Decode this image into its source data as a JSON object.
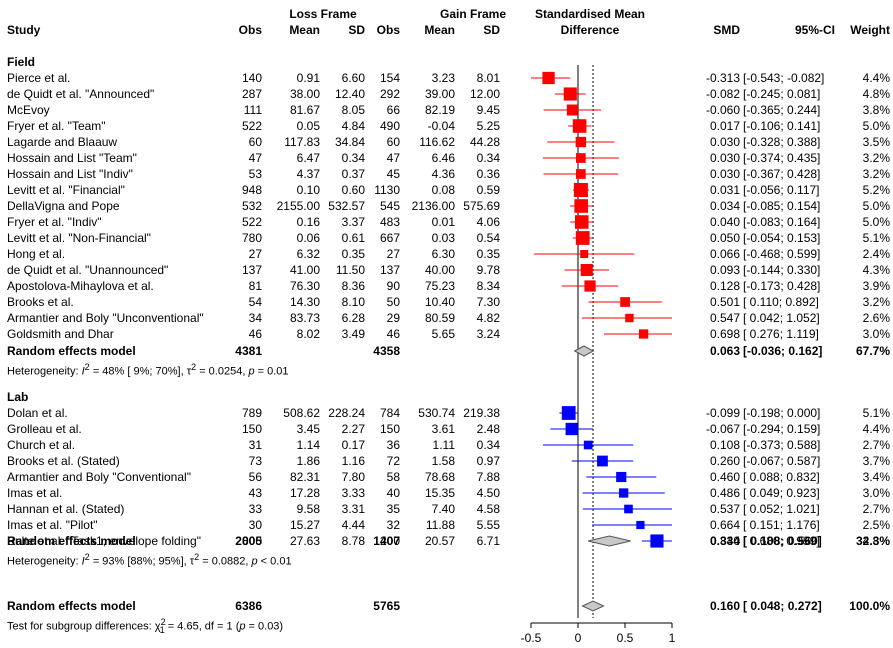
{
  "header": {
    "group_loss": "Loss Frame",
    "group_gain": "Gain Frame",
    "smd_title_1": "Standardised Mean",
    "smd_title_2": "Difference",
    "col_study": "Study",
    "col_obs1": "Obs",
    "col_mean1": "Mean",
    "col_sd1": "SD",
    "col_obs2": "Obs",
    "col_mean2": "Mean",
    "col_sd2": "SD",
    "col_smd": "SMD",
    "col_ci": "95%-CI",
    "col_weight": "Weight"
  },
  "field": {
    "title": "Field",
    "rows": [
      {
        "study": "Pierce et al.",
        "obs1": "140",
        "mean1": "0.91",
        "sd1": "6.60",
        "obs2": "154",
        "mean2": "3.23",
        "sd2": "8.01",
        "smd": "-0.313",
        "ci": "[-0.543; -0.082]",
        "weight": "4.4%"
      },
      {
        "study": "de Quidt et al. \"Announced\"",
        "obs1": "287",
        "mean1": "38.00",
        "sd1": "12.40",
        "obs2": "292",
        "mean2": "39.00",
        "sd2": "12.00",
        "smd": "-0.082",
        "ci": "[-0.245;  0.081]",
        "weight": "4.8%"
      },
      {
        "study": "McEvoy",
        "obs1": "111",
        "mean1": "81.67",
        "sd1": "8.05",
        "obs2": "66",
        "mean2": "82.19",
        "sd2": "9.45",
        "smd": "-0.060",
        "ci": "[-0.365;  0.244]",
        "weight": "3.8%"
      },
      {
        "study": "Fryer et al. \"Team\"",
        "obs1": "522",
        "mean1": "0.05",
        "sd1": "4.84",
        "obs2": "490",
        "mean2": "-0.04",
        "sd2": "5.25",
        "smd": "0.017",
        "ci": "[-0.106;  0.141]",
        "weight": "5.0%"
      },
      {
        "study": "Lagarde and Blaauw",
        "obs1": "60",
        "mean1": "117.83",
        "sd1": "34.84",
        "obs2": "60",
        "mean2": "116.62",
        "sd2": "44.28",
        "smd": "0.030",
        "ci": "[-0.328;  0.388]",
        "weight": "3.5%"
      },
      {
        "study": "Hossain and List \"Team\"",
        "obs1": "47",
        "mean1": "6.47",
        "sd1": "0.34",
        "obs2": "47",
        "mean2": "6.46",
        "sd2": "0.34",
        "smd": "0.030",
        "ci": "[-0.374;  0.435]",
        "weight": "3.2%"
      },
      {
        "study": "Hossain and List \"Indiv\"",
        "obs1": "53",
        "mean1": "4.37",
        "sd1": "0.37",
        "obs2": "45",
        "mean2": "4.36",
        "sd2": "0.36",
        "smd": "0.030",
        "ci": "[-0.367;  0.428]",
        "weight": "3.2%"
      },
      {
        "study": "Levitt et al. \"Financial\"",
        "obs1": "948",
        "mean1": "0.10",
        "sd1": "0.60",
        "obs2": "1130",
        "mean2": "0.08",
        "sd2": "0.59",
        "smd": "0.031",
        "ci": "[-0.056;  0.117]",
        "weight": "5.2%"
      },
      {
        "study": "DellaVigna and Pope",
        "obs1": "532",
        "mean1": "2155.00",
        "sd1": "532.57",
        "obs2": "545",
        "mean2": "2136.00",
        "sd2": "575.69",
        "smd": "0.034",
        "ci": "[-0.085;  0.154]",
        "weight": "5.0%"
      },
      {
        "study": "Fryer et al. \"Indiv\"",
        "obs1": "522",
        "mean1": "0.16",
        "sd1": "3.37",
        "obs2": "483",
        "mean2": "0.01",
        "sd2": "4.06",
        "smd": "0.040",
        "ci": "[-0.083;  0.164]",
        "weight": "5.0%"
      },
      {
        "study": "Levitt et al. \"Non-Financial\"",
        "obs1": "780",
        "mean1": "0.06",
        "sd1": "0.61",
        "obs2": "667",
        "mean2": "0.03",
        "sd2": "0.54",
        "smd": "0.050",
        "ci": "[-0.054;  0.153]",
        "weight": "5.1%"
      },
      {
        "study": "Hong et al.",
        "obs1": "27",
        "mean1": "6.32",
        "sd1": "0.35",
        "obs2": "27",
        "mean2": "6.30",
        "sd2": "0.35",
        "smd": "0.066",
        "ci": "[-0.468;  0.599]",
        "weight": "2.4%"
      },
      {
        "study": "de Quidt et al. \"Unannounced\"",
        "obs1": "137",
        "mean1": "41.00",
        "sd1": "11.50",
        "obs2": "137",
        "mean2": "40.00",
        "sd2": "9.78",
        "smd": "0.093",
        "ci": "[-0.144;  0.330]",
        "weight": "4.3%"
      },
      {
        "study": "Apostolova-Mihaylova et al.",
        "obs1": "81",
        "mean1": "76.30",
        "sd1": "8.36",
        "obs2": "90",
        "mean2": "75.23",
        "sd2": "8.34",
        "smd": "0.128",
        "ci": "[-0.173;  0.428]",
        "weight": "3.9%"
      },
      {
        "study": "Brooks et al.",
        "obs1": "54",
        "mean1": "14.30",
        "sd1": "8.10",
        "obs2": "50",
        "mean2": "10.40",
        "sd2": "7.30",
        "smd": "0.501",
        "ci": "[ 0.110;  0.892]",
        "weight": "3.2%"
      },
      {
        "study": "Armantier and Boly \"Unconventional\"",
        "obs1": "34",
        "mean1": "83.73",
        "sd1": "6.28",
        "obs2": "29",
        "mean2": "80.59",
        "sd2": "4.82",
        "smd": "0.547",
        "ci": "[ 0.042;  1.052]",
        "weight": "2.6%"
      },
      {
        "study": "Goldsmith and Dhar",
        "obs1": "46",
        "mean1": "8.02",
        "sd1": "3.49",
        "obs2": "46",
        "mean2": "5.65",
        "sd2": "3.24",
        "smd": "0.698",
        "ci": "[ 0.276;  1.119]",
        "weight": "3.0%"
      }
    ],
    "summary": {
      "label": "Random effects model",
      "obs1": "4381",
      "obs2": "4358",
      "smd": "0.063",
      "ci": "[-0.036;  0.162]",
      "weight": "67.7%"
    },
    "het_prefix": "Heterogeneity: ",
    "het_i2": "I",
    "het_i2_sup": "2",
    "het_mid": " = 48% [ 9%; 70%], ",
    "het_tau": "τ",
    "het_tau_sup": "2",
    "het_tail": " = 0.0254, ",
    "het_p": "p",
    "het_p_val": " = 0.01"
  },
  "lab": {
    "title": "Lab",
    "rows": [
      {
        "study": "Dolan et al.",
        "obs1": "789",
        "mean1": "508.62",
        "sd1": "228.24",
        "obs2": "784",
        "mean2": "530.74",
        "sd2": "219.38",
        "smd": "-0.099",
        "ci": "[-0.198;  0.000]",
        "weight": "5.1%"
      },
      {
        "study": "Grolleau et al.",
        "obs1": "150",
        "mean1": "3.45",
        "sd1": "2.27",
        "obs2": "150",
        "mean2": "3.61",
        "sd2": "2.48",
        "smd": "-0.067",
        "ci": "[-0.294;  0.159]",
        "weight": "4.4%"
      },
      {
        "study": "Church et al.",
        "obs1": "31",
        "mean1": "1.14",
        "sd1": "0.17",
        "obs2": "36",
        "mean2": "1.11",
        "sd2": "0.34",
        "smd": "0.108",
        "ci": "[-0.373;  0.588]",
        "weight": "2.7%"
      },
      {
        "study": "Brooks et al. (Stated)",
        "obs1": "73",
        "mean1": "1.86",
        "sd1": "1.16",
        "obs2": "72",
        "mean2": "1.58",
        "sd2": "0.97",
        "smd": "0.260",
        "ci": "[-0.067;  0.587]",
        "weight": "3.7%"
      },
      {
        "study": "Armantier and Boly \"Conventional\"",
        "obs1": "56",
        "mean1": "82.31",
        "sd1": "7.80",
        "obs2": "58",
        "mean2": "78.68",
        "sd2": "7.88",
        "smd": "0.460",
        "ci": "[ 0.088;  0.832]",
        "weight": "3.4%"
      },
      {
        "study": "Imas et al.",
        "obs1": "43",
        "mean1": "17.28",
        "sd1": "3.33",
        "obs2": "40",
        "mean2": "15.35",
        "sd2": "4.50",
        "smd": "0.486",
        "ci": "[ 0.049;  0.923]",
        "weight": "3.0%"
      },
      {
        "study": "Hannan et al. (Stated)",
        "obs1": "33",
        "mean1": "9.58",
        "sd1": "3.31",
        "obs2": "35",
        "mean2": "7.40",
        "sd2": "4.58",
        "smd": "0.537",
        "ci": "[ 0.052;  1.021]",
        "weight": "2.7%"
      },
      {
        "study": "Imas et al. \"Pilot\"",
        "obs1": "30",
        "mean1": "15.27",
        "sd1": "4.44",
        "obs2": "32",
        "mean2": "11.88",
        "sd2": "5.55",
        "smd": "0.664",
        "ci": "[ 0.151;  1.176]",
        "weight": "2.5%"
      },
      {
        "study": "Bulte et al. \"Task1, envelope folding\"",
        "obs1": "800",
        "mean1": "27.63",
        "sd1": "8.78",
        "obs2": "200",
        "mean2": "20.57",
        "sd2": "6.71",
        "smd": "0.840",
        "ci": "[ 0.680;  0.999]",
        "weight": "4.8%"
      }
    ],
    "summary": {
      "label": "Random effects model",
      "obs1": "2005",
      "obs2": "1407",
      "smd": "0.334",
      "ci": "[ 0.108;  0.560]",
      "weight": "32.3%"
    },
    "het_prefix": "Heterogeneity: ",
    "het_i2": "I",
    "het_i2_sup": "2",
    "het_mid": " = 93% [88%; 95%], ",
    "het_tau": "τ",
    "het_tau_sup": "2",
    "het_tail": " = 0.0882, ",
    "het_p": "p",
    "het_p_val": " < 0.01"
  },
  "overall": {
    "label": "Random effects model",
    "obs1": "6386",
    "obs2": "5765",
    "smd": "0.160",
    "ci": "[ 0.048;  0.272]",
    "weight": "100.0%",
    "test_prefix": "Test for subgroup differences: ",
    "test_chi": "χ",
    "test_sup": "2",
    "test_sub": "1",
    "test_mid": " = 4.65, df = 1 (",
    "test_p": "p",
    "test_tail": " = 0.03)"
  },
  "colors": {
    "field": "#ff0000",
    "lab": "#0000ff",
    "diamond": "#c8c8c8"
  },
  "chart_data": {
    "type": "forest",
    "xlim": [
      -0.5,
      1
    ],
    "x_ticks": [
      -0.5,
      0,
      0.5,
      1
    ],
    "x_tick_labels": [
      "-0.5",
      "0",
      "0.5",
      "1"
    ],
    "reference_line": 0,
    "pooled_line": 0.16,
    "field": {
      "smd": [
        -0.313,
        -0.082,
        -0.06,
        0.017,
        0.03,
        0.03,
        0.03,
        0.031,
        0.034,
        0.04,
        0.05,
        0.066,
        0.093,
        0.128,
        0.501,
        0.547,
        0.698
      ],
      "lower": [
        -0.543,
        -0.245,
        -0.365,
        -0.106,
        -0.328,
        -0.374,
        -0.367,
        -0.056,
        -0.085,
        -0.083,
        -0.054,
        -0.468,
        -0.144,
        -0.173,
        0.11,
        0.042,
        0.276
      ],
      "upper": [
        -0.082,
        0.081,
        0.244,
        0.141,
        0.388,
        0.435,
        0.428,
        0.117,
        0.154,
        0.164,
        0.153,
        0.599,
        0.33,
        0.428,
        0.892,
        1.052,
        1.119
      ],
      "weight": [
        4.4,
        4.8,
        3.8,
        5.0,
        3.5,
        3.2,
        3.2,
        5.2,
        5.0,
        5.0,
        5.1,
        2.4,
        4.3,
        3.9,
        3.2,
        2.6,
        3.0
      ],
      "pooled": {
        "smd": 0.063,
        "lower": -0.036,
        "upper": 0.162
      }
    },
    "lab": {
      "smd": [
        -0.099,
        -0.067,
        0.108,
        0.26,
        0.46,
        0.486,
        0.537,
        0.664,
        0.84
      ],
      "lower": [
        -0.198,
        -0.294,
        -0.373,
        -0.067,
        0.088,
        0.049,
        0.052,
        0.151,
        0.68
      ],
      "upper": [
        0.0,
        0.159,
        0.588,
        0.587,
        0.832,
        0.923,
        1.021,
        1.176,
        0.999
      ],
      "weight": [
        5.1,
        4.4,
        2.7,
        3.7,
        3.4,
        3.0,
        2.7,
        2.5,
        4.8
      ],
      "pooled": {
        "smd": 0.334,
        "lower": 0.108,
        "upper": 0.56
      }
    },
    "overall_pooled": {
      "smd": 0.16,
      "lower": 0.048,
      "upper": 0.272
    }
  }
}
